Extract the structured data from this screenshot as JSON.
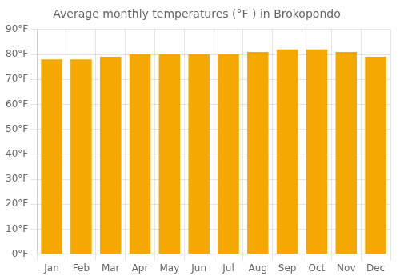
{
  "chart_data": {
    "type": "bar",
    "title": "Average monthly temperatures (°F ) in Brokopondo",
    "categories": [
      "Jan",
      "Feb",
      "Mar",
      "Apr",
      "May",
      "Jun",
      "Jul",
      "Aug",
      "Sep",
      "Oct",
      "Nov",
      "Dec"
    ],
    "values": [
      78,
      78,
      79,
      80,
      80,
      80,
      80,
      81,
      82,
      82,
      81,
      79
    ],
    "color": "#F5A800",
    "ylim": [
      0,
      90
    ],
    "yticks": [
      {
        "value": 0,
        "label": "0°F"
      },
      {
        "value": 10,
        "label": "10°F"
      },
      {
        "value": 20,
        "label": "20°F"
      },
      {
        "value": 30,
        "label": "30°F"
      },
      {
        "value": 40,
        "label": "40°F"
      },
      {
        "value": 50,
        "label": "50°F"
      },
      {
        "value": 60,
        "label": "60°F"
      },
      {
        "value": 70,
        "label": "70°F"
      },
      {
        "value": 80,
        "label": "80°F"
      },
      {
        "value": 90,
        "label": "90°F"
      }
    ],
    "grid": true
  }
}
